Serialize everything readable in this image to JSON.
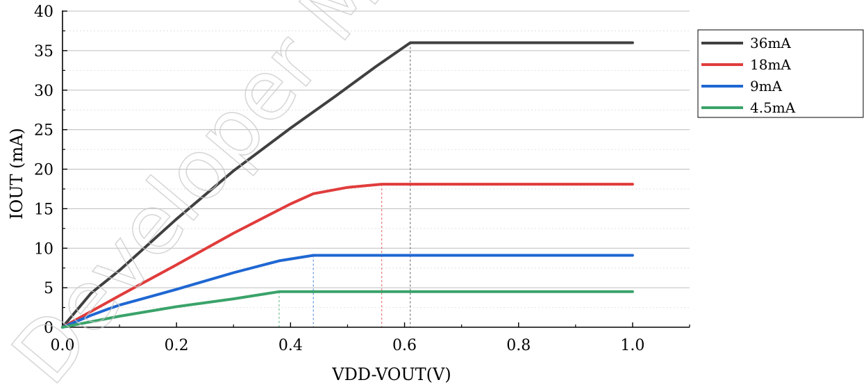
{
  "watermark": "Developer Microelectronics",
  "chart_data": {
    "type": "line",
    "xlabel": "VDD-VOUT(V)",
    "ylabel": "IOUT (mA)",
    "xlim": [
      0,
      1.1
    ],
    "ylim": [
      0,
      40
    ],
    "x_ticks": [
      0.0,
      0.2,
      0.4,
      0.6,
      0.8,
      1.0
    ],
    "x_tick_labels": [
      "0.0",
      "0.2",
      "0.4",
      "0.6",
      "0.8",
      "1.0"
    ],
    "y_ticks": [
      0,
      5,
      10,
      15,
      20,
      25,
      30,
      35,
      40
    ],
    "y_tick_labels": [
      "0",
      "5",
      "10",
      "15",
      "20",
      "25",
      "30",
      "35",
      "40"
    ],
    "grid": true,
    "legend_position": "right",
    "series": [
      {
        "name": "36mA",
        "color": "#404040",
        "x": [
          0.0,
          0.05,
          0.1,
          0.2,
          0.3,
          0.4,
          0.48,
          0.55,
          0.61,
          0.7,
          0.8,
          0.9,
          1.0
        ],
        "y": [
          0,
          4.3,
          7.2,
          13.7,
          19.8,
          25.2,
          29.3,
          33.0,
          36.0,
          36.0,
          36.0,
          36.0,
          36.0
        ]
      },
      {
        "name": "18mA",
        "color": "#e03c3c",
        "x": [
          0.0,
          0.1,
          0.2,
          0.3,
          0.4,
          0.44,
          0.5,
          0.56,
          0.7,
          0.8,
          0.9,
          1.0
        ],
        "y": [
          0,
          4.0,
          7.9,
          11.9,
          15.6,
          16.9,
          17.7,
          18.1,
          18.1,
          18.1,
          18.1,
          18.1
        ]
      },
      {
        "name": "9mA",
        "color": "#1f67d2",
        "x": [
          0.0,
          0.05,
          0.08,
          0.1,
          0.15,
          0.2,
          0.3,
          0.38,
          0.44,
          0.6,
          0.8,
          1.0
        ],
        "y": [
          0,
          1.5,
          2.3,
          2.8,
          3.8,
          4.8,
          6.9,
          8.4,
          9.1,
          9.1,
          9.1,
          9.1
        ]
      },
      {
        "name": "4.5mA",
        "color": "#3aa36a",
        "x": [
          0.0,
          0.1,
          0.2,
          0.3,
          0.38,
          0.5,
          0.6,
          0.8,
          1.0
        ],
        "y": [
          0,
          1.4,
          2.6,
          3.6,
          4.5,
          4.5,
          4.5,
          4.5,
          4.5
        ]
      }
    ],
    "annotations": [
      {
        "type": "vline",
        "x": 0.61,
        "y": 36.0,
        "color": "#404040"
      },
      {
        "type": "vline",
        "x": 0.56,
        "y": 18.1,
        "color": "#e03c3c"
      },
      {
        "type": "vline",
        "x": 0.44,
        "y": 9.1,
        "color": "#1f67d2"
      },
      {
        "type": "vline",
        "x": 0.38,
        "y": 4.5,
        "color": "#3aa36a"
      }
    ]
  }
}
